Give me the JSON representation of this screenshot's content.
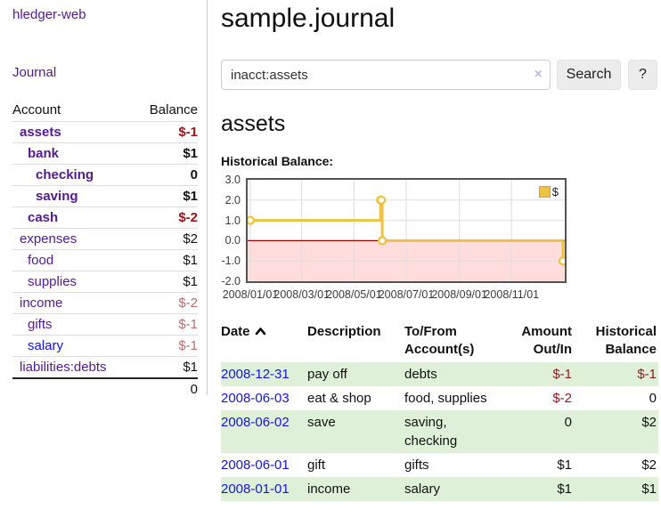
{
  "app": {
    "title": "hledger-web"
  },
  "sidebar": {
    "journal_link": "Journal",
    "headers": {
      "account": "Account",
      "balance": "Balance"
    },
    "accounts": [
      {
        "name": "assets",
        "indent": 0,
        "bold": true,
        "balance": "$-1",
        "neg": "strong",
        "link": "purple"
      },
      {
        "name": "bank",
        "indent": 1,
        "bold": true,
        "balance": "$1",
        "neg": "none",
        "link": "purple"
      },
      {
        "name": "checking",
        "indent": 2,
        "bold": true,
        "balance": "0",
        "neg": "none",
        "link": "purple"
      },
      {
        "name": "saving",
        "indent": 2,
        "bold": true,
        "balance": "$1",
        "neg": "none",
        "link": "purple"
      },
      {
        "name": "cash",
        "indent": 1,
        "bold": true,
        "balance": "$-2",
        "neg": "strong",
        "link": "purple"
      },
      {
        "name": "expenses",
        "indent": 0,
        "bold": false,
        "balance": "$2",
        "neg": "none",
        "link": "purple"
      },
      {
        "name": "food",
        "indent": 1,
        "bold": false,
        "balance": "$1",
        "neg": "none",
        "link": "purple"
      },
      {
        "name": "supplies",
        "indent": 1,
        "bold": false,
        "balance": "$1",
        "neg": "none",
        "link": "purple"
      },
      {
        "name": "income",
        "indent": 0,
        "bold": false,
        "balance": "$-2",
        "neg": "soft",
        "link": "purple"
      },
      {
        "name": "gifts",
        "indent": 1,
        "bold": false,
        "balance": "$-1",
        "neg": "soft",
        "link": "purple"
      },
      {
        "name": "salary",
        "indent": 1,
        "bold": false,
        "balance": "$-1",
        "neg": "soft",
        "link": "blue"
      },
      {
        "name": "liabilities:debts",
        "indent": 0,
        "bold": false,
        "balance": "$1",
        "neg": "none",
        "link": "purple"
      }
    ],
    "total": "0"
  },
  "header": {
    "title": "sample.journal"
  },
  "search": {
    "value": "inacct:assets",
    "clear_icon": "×",
    "button_label": "Search",
    "help_label": "?"
  },
  "account_page": {
    "title": "assets",
    "chart_label": "Historical Balance:"
  },
  "chart_data": {
    "type": "line",
    "step": true,
    "title": "Historical Balance:",
    "series": [
      {
        "name": "$",
        "color": "#edc240",
        "points": [
          [
            "2008-01-01",
            1
          ],
          [
            "2008-06-01",
            2
          ],
          [
            "2008-06-02",
            2
          ],
          [
            "2008-06-03",
            0
          ],
          [
            "2008-12-31",
            -1
          ]
        ]
      }
    ],
    "xlim": [
      "2008-01-01",
      "2008-12-31"
    ],
    "ylim": [
      -2,
      3
    ],
    "x_ticks": [
      "2008/01/01",
      "2008/03/01",
      "2008/05/01",
      "2008/07/01",
      "2008/09/01",
      "2008/11/01"
    ],
    "y_ticks": [
      3.0,
      2.0,
      1.0,
      0.0,
      -1.0,
      -2.0
    ],
    "grid": true,
    "negative_region_color": "#ffdddd",
    "zero_line_color": "#990000",
    "legend": {
      "label": "$",
      "position": "top-right"
    }
  },
  "register": {
    "headers": {
      "date": "Date",
      "description": "Description",
      "accounts": "To/From Account(s)",
      "amount": "Amount Out/In",
      "balance": "Historical Balance"
    },
    "rows": [
      {
        "date": "2008-12-31",
        "description": "pay off",
        "accounts": "debts",
        "amount": "$-1",
        "amount_neg": true,
        "balance": "$-1",
        "balance_neg": true
      },
      {
        "date": "2008-06-03",
        "description": "eat & shop",
        "accounts": "food, supplies",
        "amount": "$-2",
        "amount_neg": true,
        "balance": "0",
        "balance_neg": false
      },
      {
        "date": "2008-06-02",
        "description": "save",
        "accounts": "saving, checking",
        "amount": "0",
        "amount_neg": false,
        "balance": "$2",
        "balance_neg": false
      },
      {
        "date": "2008-06-01",
        "description": "gift",
        "accounts": "gifts",
        "amount": "$1",
        "amount_neg": false,
        "balance": "$2",
        "balance_neg": false
      },
      {
        "date": "2008-01-01",
        "description": "income",
        "accounts": "salary",
        "amount": "$1",
        "amount_neg": false,
        "balance": "$1",
        "balance_neg": false
      }
    ]
  },
  "colors": {
    "link_purple": "#551a8b",
    "link_blue": "#1515dd",
    "neg_strong": "#9b1313",
    "neg_soft": "#ba6c6c",
    "neg_table": "#8b1a1a",
    "row_green": "#dff0d8",
    "series_gold": "#edc240",
    "chart_border": "#545454",
    "pink_region": "#ffdddd",
    "zero_line": "#990000"
  }
}
